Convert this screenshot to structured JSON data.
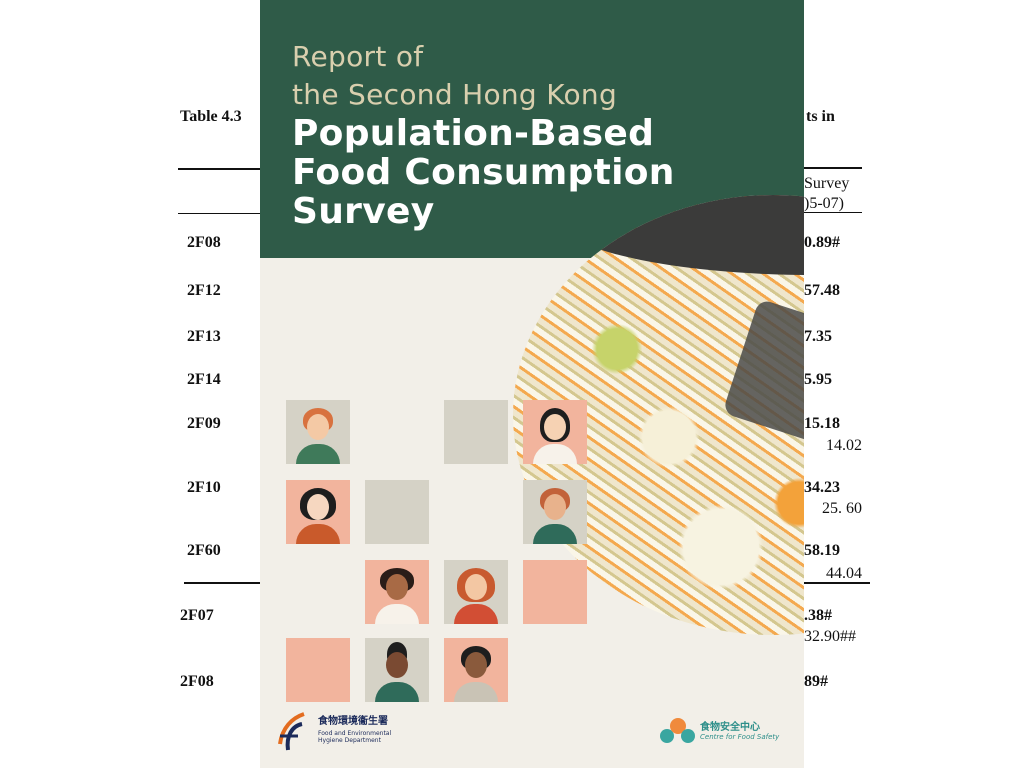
{
  "table_page": {
    "caption_left": "Table 4.3",
    "caption_right": "ts in",
    "column_head_line1": "Survey",
    "column_head_line2": ")5-07)",
    "rows_top": [
      {
        "code": "2F08",
        "value": "0.89#",
        "sub": ""
      },
      {
        "code": "2F12",
        "value": "57.48",
        "sub": ""
      },
      {
        "code": "2F13",
        "value": "7.35",
        "sub": ""
      },
      {
        "code": "2F14",
        "value": "5.95",
        "sub": ""
      },
      {
        "code": "2F09",
        "value": "15.18",
        "sub": "14.02"
      },
      {
        "code": "2F10",
        "value": "34.23",
        "sub": "25. 60"
      },
      {
        "code": "2F60",
        "value": "58.19",
        "sub": "44.04"
      }
    ],
    "rows_bottom": [
      {
        "code": "2F07",
        "value": ".38#",
        "sub": "32.90##"
      },
      {
        "code": "2F08",
        "value": "89#",
        "sub": ""
      }
    ]
  },
  "cover": {
    "title_line1": "Report of",
    "title_line2": "the Second Hong Kong",
    "title_line3": "Population-Based",
    "title_line4": "Food Consumption",
    "title_line5": "Survey",
    "colors": {
      "header_green": "#2f5b48",
      "title_gold": "#d9cfae",
      "background": "#f2efe8",
      "peach": "#f2b49d",
      "grey": "#d5d2c6"
    },
    "logo_left": {
      "zh": "食物環境衞生署",
      "en": "Food and Environmental Hygiene Department"
    },
    "logo_right": {
      "zh": "食物安全中心",
      "en": "Centre for Food Safety"
    }
  }
}
